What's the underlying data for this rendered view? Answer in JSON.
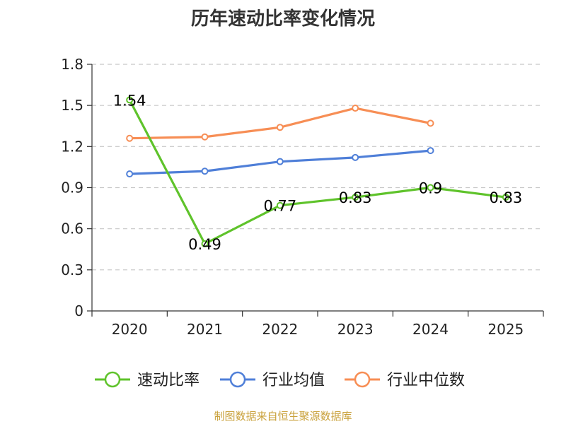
{
  "chart_data": {
    "type": "line",
    "title": "历年速动比率变化情况",
    "categories": [
      "2020",
      "2021",
      "2022",
      "2023",
      "2024",
      "2025"
    ],
    "ylim": [
      0,
      1.8
    ],
    "yticks": [
      "0",
      "0.3",
      "0.6",
      "0.9",
      "1.2",
      "1.5",
      "1.8"
    ],
    "ytick_values": [
      0,
      0.3,
      0.6,
      0.9,
      1.2,
      1.5,
      1.8
    ],
    "grid": true,
    "legend_position": "bottom-center",
    "series": [
      {
        "name": "速动比率",
        "color": "#5fc32b",
        "values": [
          1.54,
          0.49,
          0.77,
          0.83,
          0.9,
          0.83
        ],
        "labels": [
          "1.54",
          "0.49",
          "0.77",
          "0.83",
          "0.9",
          "0.83"
        ]
      },
      {
        "name": "行业均值",
        "color": "#4f7fd8",
        "values": [
          1.0,
          1.02,
          1.09,
          1.12,
          1.17,
          null
        ]
      },
      {
        "name": "行业中位数",
        "color": "#f78e55",
        "values": [
          1.26,
          1.27,
          1.34,
          1.48,
          1.37,
          null
        ]
      }
    ]
  },
  "source": "制图数据来自恒生聚源数据库"
}
